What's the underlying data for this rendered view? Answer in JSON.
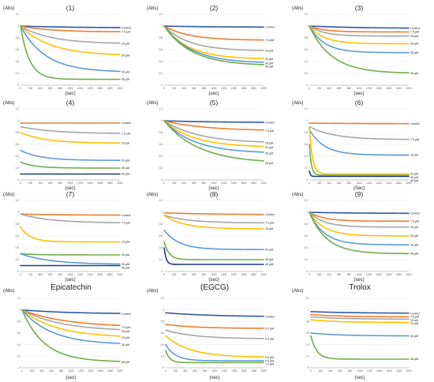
{
  "colors": {
    "control": "#2e5aa8",
    "orange": "#ed7d31",
    "gray": "#a5a5a5",
    "yellow": "#ffc000",
    "lightblue": "#5b9bd5",
    "green": "#70ad47",
    "darkblue": "#1f3b7a"
  },
  "chart_data": [
    {
      "type": "line",
      "title": "(1)",
      "ylabel": "(Abs)",
      "xlabel": "(sec)",
      "xlim": [
        0,
        2000
      ],
      "ylim": [
        0,
        1.2
      ],
      "xticks": [
        "0",
        "200",
        "400",
        "600",
        "800",
        "1000",
        "1200",
        "1400",
        "1600",
        "1800",
        "2000"
      ],
      "yticks": [
        "0",
        "0.2",
        "0.4",
        "0.6",
        "0.8",
        "1",
        "1.2"
      ],
      "series": [
        {
          "name": "Control",
          "color": "control",
          "start": 1.0,
          "end": 0.97,
          "tau": 1000
        },
        {
          "name": "7.5 μM",
          "color": "orange",
          "start": 1.0,
          "end": 0.9,
          "tau": 600
        },
        {
          "name": "15 μM",
          "color": "gray",
          "start": 1.0,
          "end": 0.7,
          "tau": 600
        },
        {
          "name": "20 μM",
          "color": "yellow",
          "start": 1.0,
          "end": 0.5,
          "tau": 600
        },
        {
          "name": "30 μM",
          "color": "lightblue",
          "start": 1.0,
          "end": 0.22,
          "tau": 500
        },
        {
          "name": "45 μM",
          "color": "green",
          "start": 1.0,
          "end": 0.1,
          "tau": 180
        }
      ]
    },
    {
      "type": "line",
      "title": "(2)",
      "ylabel": "(Abs)",
      "xlabel": "(sec)",
      "xlim": [
        0,
        2000
      ],
      "ylim": [
        0,
        1.2
      ],
      "xticks": [
        "0",
        "200",
        "400",
        "600",
        "800",
        "1000",
        "1200",
        "1400",
        "1600",
        "1800",
        "2000"
      ],
      "yticks": [
        "0",
        "0.2",
        "0.4",
        "0.6",
        "0.8",
        "1",
        "1.2"
      ],
      "series": [
        {
          "name": "Control",
          "color": "control",
          "start": 1.0,
          "end": 0.98,
          "tau": 1000
        },
        {
          "name": "7.5 μM",
          "color": "orange",
          "start": 1.0,
          "end": 0.76,
          "tau": 500
        },
        {
          "name": "15 μM",
          "color": "gray",
          "start": 1.0,
          "end": 0.58,
          "tau": 500
        },
        {
          "name": "20 μM",
          "color": "yellow",
          "start": 1.0,
          "end": 0.44,
          "tau": 500
        },
        {
          "name": "30 μM",
          "color": "lightblue",
          "start": 1.0,
          "end": 0.37,
          "tau": 550
        },
        {
          "name": "45 μM",
          "color": "green",
          "start": 1.0,
          "end": 0.33,
          "tau": 550
        }
      ]
    },
    {
      "type": "line",
      "title": "(3)",
      "ylabel": "(Abs)",
      "xlabel": "(sec)",
      "xlim": [
        0,
        2000
      ],
      "ylim": [
        0,
        1.2
      ],
      "xticks": [
        "0",
        "200",
        "400",
        "600",
        "800",
        "1000",
        "1200",
        "1400",
        "1600",
        "1800",
        "2000"
      ],
      "yticks": [
        "0",
        "0.2",
        "0.4",
        "0.6",
        "0.8",
        "1",
        "1.2"
      ],
      "series": [
        {
          "name": "Control",
          "color": "control",
          "start": 1.0,
          "end": 0.96,
          "tau": 1000
        },
        {
          "name": "7.5 μM",
          "color": "orange",
          "start": 1.0,
          "end": 0.9,
          "tau": 300
        },
        {
          "name": "15 μM",
          "color": "gray",
          "start": 1.0,
          "end": 0.83,
          "tau": 300
        },
        {
          "name": "20 μM",
          "color": "yellow",
          "start": 1.0,
          "end": 0.7,
          "tau": 300
        },
        {
          "name": "30 μM",
          "color": "lightblue",
          "start": 1.0,
          "end": 0.55,
          "tau": 300
        },
        {
          "name": "45 μM",
          "color": "green",
          "start": 1.0,
          "end": 0.2,
          "tau": 450
        }
      ]
    },
    {
      "type": "line",
      "title": "(4)",
      "ylabel": "(Abs)",
      "xlabel": "(sec)",
      "xlim": [
        0,
        2000
      ],
      "ylim": [
        0,
        1.2
      ],
      "xticks": [
        "0",
        "200",
        "400",
        "600",
        "800",
        "1000",
        "1200",
        "1400",
        "1600",
        "1800",
        "2000"
      ],
      "yticks": [
        "0",
        "0.2",
        "0.4",
        "0.6",
        "0.8",
        "1",
        "1.2"
      ],
      "series": [
        {
          "name": "Control",
          "color": "orange",
          "start": 0.96,
          "end": 0.96,
          "tau": 1000
        },
        {
          "name": "7.5 μM",
          "color": "gray",
          "start": 0.9,
          "end": 0.78,
          "tau": 700
        },
        {
          "name": "15 μM",
          "color": "yellow",
          "start": 0.8,
          "end": 0.62,
          "tau": 500
        },
        {
          "name": "20 μM",
          "color": "lightblue",
          "start": 0.5,
          "end": 0.33,
          "tau": 400
        },
        {
          "name": "30 μM",
          "color": "green",
          "start": 0.3,
          "end": 0.2,
          "tau": 300
        },
        {
          "name": "45 μM",
          "color": "darkblue",
          "start": 0.1,
          "end": 0.1,
          "tau": 300
        }
      ]
    },
    {
      "type": "line",
      "title": "(5)",
      "ylabel": "(Abs)",
      "xlabel": "(sec)",
      "xlim": [
        0,
        2000
      ],
      "ylim": [
        0,
        1.2
      ],
      "xticks": [
        "0",
        "200",
        "400",
        "600",
        "800",
        "1000",
        "1200",
        "1400",
        "1600",
        "1800",
        "2000"
      ],
      "yticks": [
        "0",
        "0.2",
        "0.4",
        "0.6",
        "0.8",
        "1",
        "1.2"
      ],
      "series": [
        {
          "name": "Control",
          "color": "control",
          "start": 1.0,
          "end": 0.97,
          "tau": 1000
        },
        {
          "name": "7.5 μM",
          "color": "orange",
          "start": 1.0,
          "end": 0.83,
          "tau": 800
        },
        {
          "name": "15 μM",
          "color": "gray",
          "start": 1.0,
          "end": 0.62,
          "tau": 700
        },
        {
          "name": "20 μM",
          "color": "yellow",
          "start": 1.0,
          "end": 0.55,
          "tau": 600
        },
        {
          "name": "30 μM",
          "color": "lightblue",
          "start": 1.0,
          "end": 0.45,
          "tau": 600
        },
        {
          "name": "45 μM",
          "color": "green",
          "start": 1.0,
          "end": 0.28,
          "tau": 700
        }
      ]
    },
    {
      "type": "line",
      "title": "(6)",
      "ylabel": "(Abs)",
      "xlabel": "(Sec)",
      "xlim": [
        0,
        2000
      ],
      "ylim": [
        0,
        1.2
      ],
      "xticks": [
        "0",
        "200",
        "400",
        "600",
        "800",
        "1000",
        "1200",
        "1400",
        "1600",
        "1800",
        "2000"
      ],
      "yticks": [
        "0",
        "0.2",
        "0.4",
        "0.6",
        "0.8",
        "1",
        "1.2"
      ],
      "series": [
        {
          "name": "Control",
          "color": "orange",
          "start": 0.96,
          "end": 0.95,
          "tau": 1000
        },
        {
          "name": "7.5 μM",
          "color": "gray",
          "start": 0.9,
          "end": 0.68,
          "tau": 500
        },
        {
          "name": "15 μM",
          "color": "lightblue",
          "start": 0.85,
          "end": 0.42,
          "tau": 300
        },
        {
          "name": "20 μM",
          "color": "yellow",
          "start": 0.9,
          "end": 0.1,
          "tau": 60
        },
        {
          "name": "30 μM",
          "color": "green",
          "start": 0.6,
          "end": 0.08,
          "tau": 40
        },
        {
          "name": "45 μM",
          "color": "darkblue",
          "start": 0.15,
          "end": 0.06,
          "tau": 20
        }
      ]
    },
    {
      "type": "line",
      "title": "(7)",
      "ylabel": "(Abs)",
      "xlabel": "(sec)",
      "xlim": [
        0,
        2000
      ],
      "ylim": [
        0,
        1.2
      ],
      "xticks": [
        "0",
        "200",
        "400",
        "600",
        "800",
        "1000",
        "1200",
        "1400",
        "1600",
        "1800",
        "2000"
      ],
      "yticks": [
        "0",
        "0.2",
        "0.4",
        "0.6",
        "0.8",
        "1",
        "1.2"
      ],
      "series": [
        {
          "name": "Control",
          "color": "orange",
          "start": 0.97,
          "end": 0.95,
          "tau": 1000
        },
        {
          "name": "7.5 μM",
          "color": "gray",
          "start": 0.97,
          "end": 0.82,
          "tau": 600
        },
        {
          "name": "15 μM",
          "color": "yellow",
          "start": 0.75,
          "end": 0.5,
          "tau": 200
        },
        {
          "name": "20 μM",
          "color": "green",
          "start": 0.3,
          "end": 0.28,
          "tau": 300
        },
        {
          "name": "30 μM",
          "color": "lightblue",
          "start": 0.3,
          "end": 0.12,
          "tau": 600
        },
        {
          "name": "45 μM",
          "color": "darkblue",
          "start": 0.1,
          "end": 0.1,
          "tau": 300
        }
      ]
    },
    {
      "type": "line",
      "title": "(8)",
      "ylabel": "(Abs)",
      "xlabel": "(sec)",
      "xlim": [
        0,
        2000
      ],
      "ylim": [
        0,
        1.2
      ],
      "xticks": [
        "0",
        "200",
        "400",
        "600",
        "800",
        "1000",
        "1200",
        "1400",
        "1600",
        "1800",
        "2000"
      ],
      "yticks": [
        "0",
        "0.2",
        "0.4",
        "0.6",
        "0.8",
        "1",
        "1.2"
      ],
      "series": [
        {
          "name": "Control",
          "color": "orange",
          "start": 0.99,
          "end": 0.96,
          "tau": 1000
        },
        {
          "name": "7.5 μM",
          "color": "gray",
          "start": 0.95,
          "end": 0.82,
          "tau": 500
        },
        {
          "name": "15 μM",
          "color": "yellow",
          "start": 0.95,
          "end": 0.72,
          "tau": 400
        },
        {
          "name": "20 μM",
          "color": "lightblue",
          "start": 0.7,
          "end": 0.37,
          "tau": 300
        },
        {
          "name": "30 μM",
          "color": "green",
          "start": 0.5,
          "end": 0.2,
          "tau": 100
        },
        {
          "name": "45 μM",
          "color": "darkblue",
          "start": 0.4,
          "end": 0.12,
          "tau": 40
        }
      ]
    },
    {
      "type": "line",
      "title": "(9)",
      "ylabel": "(Abs)",
      "xlabel": "(sec)",
      "xlim": [
        0,
        2000
      ],
      "ylim": [
        0,
        1.2
      ],
      "xticks": [
        "0",
        "200",
        "400",
        "600",
        "800",
        "1000",
        "1200",
        "1400",
        "1600",
        "1800",
        "2000"
      ],
      "yticks": [
        "0",
        "0.2",
        "0.4",
        "0.6",
        "0.8",
        "1",
        "1.2"
      ],
      "series": [
        {
          "name": "Control",
          "color": "control",
          "start": 1.0,
          "end": 0.98,
          "tau": 1000
        },
        {
          "name": "7.5 μM",
          "color": "orange",
          "start": 1.0,
          "end": 0.85,
          "tau": 300
        },
        {
          "name": "15 μM",
          "color": "gray",
          "start": 1.0,
          "end": 0.75,
          "tau": 300
        },
        {
          "name": "20 μM",
          "color": "yellow",
          "start": 1.0,
          "end": 0.6,
          "tau": 300
        },
        {
          "name": "30 μM",
          "color": "lightblue",
          "start": 1.0,
          "end": 0.45,
          "tau": 300
        },
        {
          "name": "45 μM",
          "color": "green",
          "start": 1.0,
          "end": 0.3,
          "tau": 350
        }
      ]
    },
    {
      "type": "line",
      "title": "Epicatechin",
      "ylabel": "(Abs)",
      "xlabel": "(sec)",
      "xlim": [
        0,
        2000
      ],
      "ylim": [
        0,
        1.2
      ],
      "xticks": [
        "0",
        "200",
        "400",
        "600",
        "800",
        "1000",
        "1200",
        "1400",
        "1600",
        "1800",
        "2000"
      ],
      "yticks": [
        "0",
        "0.2",
        "0.4",
        "0.6",
        "0.8",
        "1",
        "1.2"
      ],
      "series": [
        {
          "name": "Control",
          "color": "control",
          "start": 1.0,
          "end": 0.93,
          "tau": 1000
        },
        {
          "name": "7.5 μM",
          "color": "orange",
          "start": 1.0,
          "end": 0.7,
          "tau": 900
        },
        {
          "name": "15 μM",
          "color": "gray",
          "start": 1.0,
          "end": 0.63,
          "tau": 800
        },
        {
          "name": "20 μM",
          "color": "yellow",
          "start": 1.0,
          "end": 0.52,
          "tau": 700
        },
        {
          "name": "30 μM",
          "color": "lightblue",
          "start": 1.0,
          "end": 0.4,
          "tau": 600
        },
        {
          "name": "45 μM",
          "color": "green",
          "start": 1.0,
          "end": 0.1,
          "tau": 450
        }
      ]
    },
    {
      "type": "line",
      "title": "(EGCG)",
      "ylabel": "(Abs)",
      "xlabel": "(sec)",
      "xlim": [
        0,
        2000
      ],
      "ylim": [
        0,
        1.2
      ],
      "xticks": [
        "0",
        "200",
        "400",
        "600",
        "800",
        "1000",
        "1200",
        "1400",
        "1600",
        "1800",
        "2000"
      ],
      "yticks": [
        "0",
        "0.2",
        "0.4",
        "0.6",
        "0.8",
        "1",
        "1.2"
      ],
      "series": [
        {
          "name": "Control",
          "color": "control",
          "start": 0.95,
          "end": 0.88,
          "tau": 1000
        },
        {
          "name": "0.2 μM",
          "color": "orange",
          "start": 0.75,
          "end": 0.68,
          "tau": 600
        },
        {
          "name": "0.4 μM",
          "color": "gray",
          "start": 0.65,
          "end": 0.5,
          "tau": 600
        },
        {
          "name": "0.6 μM",
          "color": "yellow",
          "start": 0.55,
          "end": 0.18,
          "tau": 500
        },
        {
          "name": "0.8 μM",
          "color": "lightblue",
          "start": 0.4,
          "end": 0.12,
          "tau": 200
        },
        {
          "name": "1.0 μM",
          "color": "green",
          "start": 0.3,
          "end": 0.09,
          "tau": 80
        }
      ]
    },
    {
      "type": "line",
      "title": "Trolox",
      "ylabel": "(Abs)",
      "xlabel": "(sec)",
      "xlim": [
        0,
        2000
      ],
      "ylim": [
        0,
        1.2
      ],
      "xticks": [
        "0",
        "200",
        "400",
        "600",
        "800",
        "1000",
        "1200",
        "1400",
        "1600",
        "1800",
        "2000"
      ],
      "yticks": [
        "0",
        "0.2",
        "0.4",
        "0.6",
        "0.8",
        "1",
        "1.2"
      ],
      "series": [
        {
          "name": "Control",
          "color": "control",
          "start": 0.97,
          "end": 0.94,
          "tau": 1000
        },
        {
          "name": "7.5 μM",
          "color": "orange",
          "start": 0.92,
          "end": 0.88,
          "tau": 600
        },
        {
          "name": "15 μM",
          "color": "gray",
          "start": 0.88,
          "end": 0.84,
          "tau": 600
        },
        {
          "name": "20 μM",
          "color": "yellow",
          "start": 0.83,
          "end": 0.78,
          "tau": 600
        },
        {
          "name": "30 μM",
          "color": "lightblue",
          "start": 0.6,
          "end": 0.55,
          "tau": 600
        },
        {
          "name": "45 μM",
          "color": "green",
          "start": 0.55,
          "end": 0.15,
          "tau": 120
        }
      ]
    }
  ]
}
